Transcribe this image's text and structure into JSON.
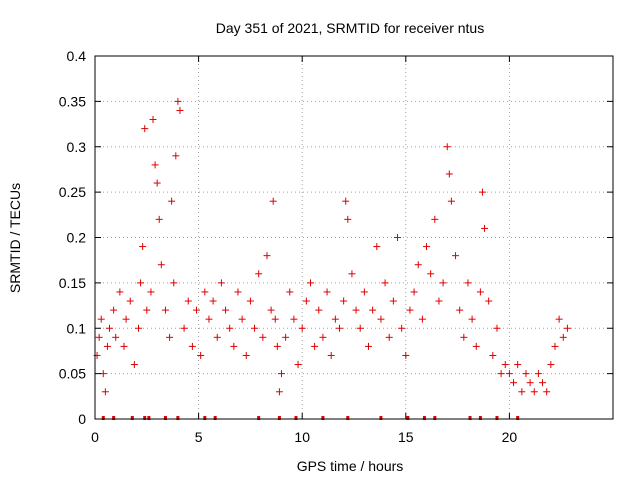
{
  "chart_data": {
    "type": "scatter",
    "title": "Day 351 of 2021, SRMTID for receiver ntus",
    "xlabel": "GPS time / hours",
    "ylabel": "SRMTID / TECUs",
    "xlim": [
      0,
      25
    ],
    "ylim": [
      0,
      0.4
    ],
    "xticks": [
      0,
      5,
      10,
      15,
      20
    ],
    "xtick_labels": [
      "0",
      "5",
      "10",
      "15",
      "20"
    ],
    "yticks": [
      0,
      0.05,
      0.1,
      0.15,
      0.2,
      0.25,
      0.3,
      0.35,
      0.4
    ],
    "ytick_labels": [
      "0",
      "0.05",
      "0.1",
      "0.15",
      "0.2",
      "0.25",
      "0.3",
      "0.35",
      "0.4"
    ],
    "grid": true,
    "marker": "plus",
    "color": "#e00000",
    "series": [
      {
        "name": "SRMTID",
        "x": [
          0.1,
          0.2,
          0.3,
          0.4,
          0.5,
          0.6,
          0.7,
          0.9,
          1.0,
          1.2,
          1.4,
          1.5,
          1.7,
          1.9,
          2.1,
          2.2,
          2.3,
          2.4,
          2.5,
          2.7,
          2.8,
          2.9,
          3.0,
          3.1,
          3.2,
          3.4,
          3.6,
          3.7,
          3.8,
          3.9,
          4.0,
          4.1,
          4.3,
          4.5,
          4.7,
          4.9,
          5.1,
          5.3,
          5.5,
          5.7,
          5.9,
          6.1,
          6.3,
          6.5,
          6.7,
          6.9,
          7.1,
          7.3,
          7.5,
          7.7,
          7.9,
          8.1,
          8.3,
          8.5,
          8.6,
          8.7,
          8.8,
          8.9,
          9.0,
          9.2,
          9.4,
          9.6,
          9.8,
          10.0,
          10.2,
          10.4,
          10.6,
          10.8,
          11.0,
          11.2,
          11.4,
          11.6,
          11.8,
          12.0,
          12.1,
          12.2,
          12.4,
          12.6,
          12.8,
          13.0,
          13.2,
          13.4,
          13.6,
          13.8,
          14.0,
          14.2,
          14.4,
          14.6,
          14.8,
          15.0,
          15.2,
          15.4,
          15.6,
          15.8,
          16.0,
          16.2,
          16.4,
          16.6,
          16.8,
          17.0,
          17.1,
          17.2,
          17.4,
          17.6,
          17.8,
          18.0,
          18.2,
          18.4,
          18.6,
          18.7,
          18.8,
          19.0,
          19.2,
          19.4,
          19.6,
          19.8,
          20.0,
          20.2,
          20.4,
          20.6,
          20.8,
          21.0,
          21.2,
          21.4,
          21.6,
          21.8,
          22.0,
          22.2,
          22.4,
          22.6,
          22.8
        ],
        "y": [
          0.07,
          0.09,
          0.11,
          0.05,
          0.03,
          0.08,
          0.1,
          0.12,
          0.09,
          0.14,
          0.08,
          0.11,
          0.13,
          0.06,
          0.1,
          0.15,
          0.19,
          0.32,
          0.12,
          0.14,
          0.33,
          0.28,
          0.26,
          0.22,
          0.17,
          0.12,
          0.09,
          0.24,
          0.15,
          0.29,
          0.35,
          0.34,
          0.1,
          0.13,
          0.08,
          0.12,
          0.07,
          0.14,
          0.11,
          0.13,
          0.09,
          0.15,
          0.12,
          0.1,
          0.08,
          0.14,
          0.11,
          0.07,
          0.13,
          0.1,
          0.16,
          0.09,
          0.18,
          0.12,
          0.24,
          0.11,
          0.08,
          0.03,
          0.05,
          0.09,
          0.14,
          0.11,
          0.06,
          0.1,
          0.13,
          0.15,
          0.08,
          0.12,
          0.09,
          0.14,
          0.07,
          0.11,
          0.1,
          0.13,
          0.24,
          0.22,
          0.16,
          0.12,
          0.1,
          0.14,
          0.08,
          0.12,
          0.19,
          0.11,
          0.15,
          0.09,
          0.13,
          0.2,
          0.1,
          0.07,
          0.12,
          0.14,
          0.17,
          0.11,
          0.19,
          0.16,
          0.22,
          0.13,
          0.15,
          0.3,
          0.27,
          0.24,
          0.18,
          0.12,
          0.09,
          0.15,
          0.11,
          0.08,
          0.14,
          0.25,
          0.21,
          0.13,
          0.07,
          0.1,
          0.05,
          0.06,
          0.05,
          0.04,
          0.06,
          0.03,
          0.05,
          0.04,
          0.03,
          0.05,
          0.04,
          0.03,
          0.06,
          0.08,
          0.11,
          0.09,
          0.1
        ]
      }
    ],
    "zero_markers_x": [
      0.4,
      0.9,
      1.8,
      2.4,
      2.6,
      3.4,
      4.0,
      5.3,
      5.8,
      7.9,
      8.9,
      9.7,
      11.0,
      12.2,
      13.8,
      15.1,
      15.9,
      16.4,
      18.1,
      18.6,
      19.4,
      20.4
    ]
  }
}
